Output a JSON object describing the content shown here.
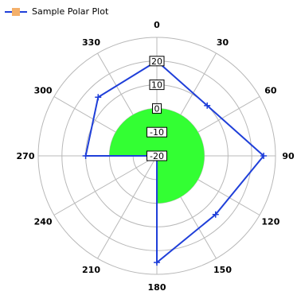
{
  "chart_data": {
    "type": "polar",
    "legend": {
      "name": "Sample Polar Plot",
      "placement": "top-left"
    },
    "angle_ticks": [
      "0",
      "30",
      "60",
      "90",
      "120",
      "150",
      "180",
      "210",
      "240",
      "270",
      "300",
      "330"
    ],
    "radial_ticks": [
      "-20",
      "-10",
      "0",
      "10",
      "20"
    ],
    "radial_range": [
      -20,
      30
    ],
    "series": [
      {
        "name": "Sample Polar Plot",
        "angles": [
          0,
          45,
          90,
          135,
          180,
          225,
          270,
          315
        ],
        "values": [
          20,
          10,
          25,
          15,
          25,
          -20,
          10,
          15
        ]
      }
    ],
    "fill_between_radial_values": [
      -20,
      0
    ],
    "colors": {
      "line": "#1f3fd9",
      "fill": "#33ff33",
      "grid": "#b8b8b8",
      "legend_box": "#f4b06a"
    }
  }
}
